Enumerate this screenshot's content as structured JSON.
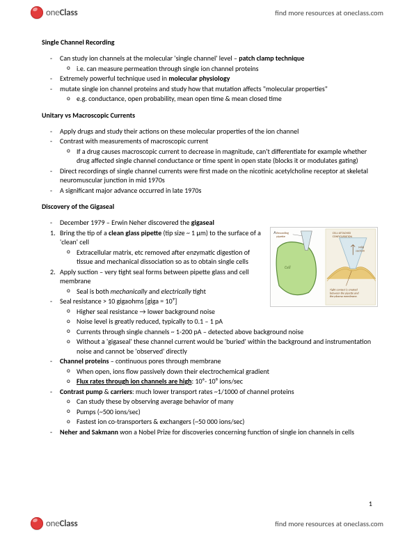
{
  "brand": {
    "part1": "one",
    "part2": "Class"
  },
  "findMore": "find more resources at oneclass.com",
  "pageNum": "1",
  "sections": [
    {
      "title": "Single Channel Recording",
      "items": [
        {
          "lvl": 1,
          "m": "dash",
          "runs": [
            {
              "t": "Can study ion channels at the molecular 'single channel' level – "
            },
            {
              "t": "patch clamp technique",
              "b": 1
            }
          ]
        },
        {
          "lvl": 2,
          "m": "circ",
          "runs": [
            {
              "t": "i.e. can measure permeation through single ion channel proteins"
            }
          ]
        },
        {
          "lvl": 1,
          "m": "dash",
          "runs": [
            {
              "t": "Extremely powerful technique used in "
            },
            {
              "t": "molecular physiology",
              "b": 1
            }
          ]
        },
        {
          "lvl": 1,
          "m": "dash",
          "runs": [
            {
              "t": "mutate single ion channel proteins and study how that mutation affects \"molecular properties\""
            }
          ]
        },
        {
          "lvl": 2,
          "m": "circ",
          "runs": [
            {
              "t": "e.g. conductance, open probability, mean open time & mean closed time"
            }
          ]
        }
      ]
    },
    {
      "title": "Unitary vs Macroscopic Currents",
      "items": [
        {
          "lvl": 1,
          "m": "dash",
          "runs": [
            {
              "t": "Apply drugs and study their actions on these molecular properties of the ion channel"
            }
          ]
        },
        {
          "lvl": 1,
          "m": "dash",
          "runs": [
            {
              "t": "Contrast with measurements of macroscopic current"
            }
          ]
        },
        {
          "lvl": 2,
          "m": "circ",
          "runs": [
            {
              "t": "If a drug causes macroscopic current to decrease in magnitude, can't differentiate for example whether drug affected single channel conductance or time spent in open state (blocks it or modulates gating)"
            }
          ]
        },
        {
          "lvl": 1,
          "m": "dash",
          "runs": [
            {
              "t": "Direct recordings of single channel currents were first made on the nicotinic acetylcholine receptor at skeletal neuromuscular junction in mid 1970s"
            }
          ]
        },
        {
          "lvl": 1,
          "m": "dash",
          "runs": [
            {
              "t": "A significant major advance occurred in late 1970s"
            }
          ]
        }
      ]
    },
    {
      "title": "Discovery of the Gigaseal",
      "wrap": true,
      "items": [
        {
          "lvl": 1,
          "m": "dash",
          "runs": [
            {
              "t": "December 1979 – Erwin Neher discovered the "
            },
            {
              "t": "gigaseal",
              "b": 1
            }
          ]
        },
        {
          "lvl": 1,
          "m": "num",
          "n": "1.",
          "runs": [
            {
              "t": "Bring the tip of a "
            },
            {
              "t": "clean glass pipette",
              "b": 1
            },
            {
              "t": " (tip size ~ 1 μm) to the surface of a 'clean' cell"
            }
          ]
        },
        {
          "lvl": 2,
          "m": "circ",
          "runs": [
            {
              "t": "Extracellular matrix, etc removed after enzymatic digestion of tissue and mechanical dissociation so as to obtain single cells"
            }
          ]
        },
        {
          "lvl": 1,
          "m": "num",
          "n": "2.",
          "runs": [
            {
              "t": "Apply suction – very tight seal forms between pipette glass and cell membrane"
            }
          ]
        },
        {
          "lvl": 2,
          "m": "circ",
          "runs": [
            {
              "t": "Seal is both "
            },
            {
              "t": "mechanically",
              "i": 1
            },
            {
              "t": " and "
            },
            {
              "t": "electrically",
              "i": 1
            },
            {
              "t": " tight"
            }
          ]
        },
        {
          "lvl": 1,
          "m": "dash",
          "runs": [
            {
              "t": "Seal resistance > 10 gigaohms [giga = 10⁹]"
            }
          ]
        },
        {
          "lvl": 2,
          "m": "circ",
          "runs": [
            {
              "t": "Higher seal resistance → lower background noise"
            }
          ]
        },
        {
          "lvl": 2,
          "m": "circ",
          "runs": [
            {
              "t": "Noise level is greatly reduced, typically to 0.1 – 1 pA"
            }
          ]
        },
        {
          "lvl": 2,
          "m": "circ",
          "runs": [
            {
              "t": "Currents through single channels ~ 1-200 pA – detected above background noise"
            }
          ]
        },
        {
          "lvl": 2,
          "m": "circ",
          "runs": [
            {
              "t": "Without a 'gigaseal' these channel current would be 'buried' within the background and instrumentation noise and cannot be 'observed' directly"
            }
          ]
        },
        {
          "lvl": 1,
          "m": "dash",
          "runs": [
            {
              "t": "Channel proteins",
              "b": 1
            },
            {
              "t": " – continuous pores through membrane"
            }
          ]
        },
        {
          "lvl": 2,
          "m": "circ",
          "runs": [
            {
              "t": "When open, ions flow passively down their electrochemical gradient"
            }
          ]
        },
        {
          "lvl": 2,
          "m": "circ",
          "runs": [
            {
              "t": "Flux rates through ion channels are high",
              "b": 1,
              "u": 1
            },
            {
              "t": ": 10⁶- 10⁸ ions/sec"
            }
          ]
        },
        {
          "lvl": 1,
          "m": "dash",
          "runs": [
            {
              "t": "Contrast pump",
              "b": 1
            },
            {
              "t": " & "
            },
            {
              "t": "carriers",
              "b": 1
            },
            {
              "t": ": much lower transport rates ~1/1000 of channel proteins"
            }
          ]
        },
        {
          "lvl": 2,
          "m": "circ",
          "runs": [
            {
              "t": "Can study these by observing average behavior of many"
            }
          ]
        },
        {
          "lvl": 2,
          "m": "circ",
          "runs": [
            {
              "t": "Pumps (~500 ions/sec)"
            }
          ]
        },
        {
          "lvl": 2,
          "m": "circ",
          "runs": [
            {
              "t": "Fastest ion co-transporters & exchangers (~50 000 ions/sec)"
            }
          ]
        },
        {
          "lvl": 1,
          "m": "dash",
          "runs": [
            {
              "t": "Neher and Sakmann",
              "b": 1
            },
            {
              "t": " won a Nobel Prize for discoveries concerning function of single ion channels in cells"
            }
          ]
        }
      ]
    }
  ],
  "diagram": {
    "labelA": "A",
    "pipetteLabel": "Recording\npipette",
    "cellLabel": "Cell",
    "modeLabel": "CELL-ATTACHED\nCONFIGURATION",
    "suctionLabel": "Mild\nsuction",
    "caption": "Tight contact is created\nbetween the pipette and\nthe plasma membrane.",
    "cellFill": "#b9dd8f",
    "cellStroke": "#5a8a3a",
    "pipetteFill": "#d9e8ee",
    "membraneFill": "#e9c97a",
    "textColor": "#7a4a1e"
  }
}
